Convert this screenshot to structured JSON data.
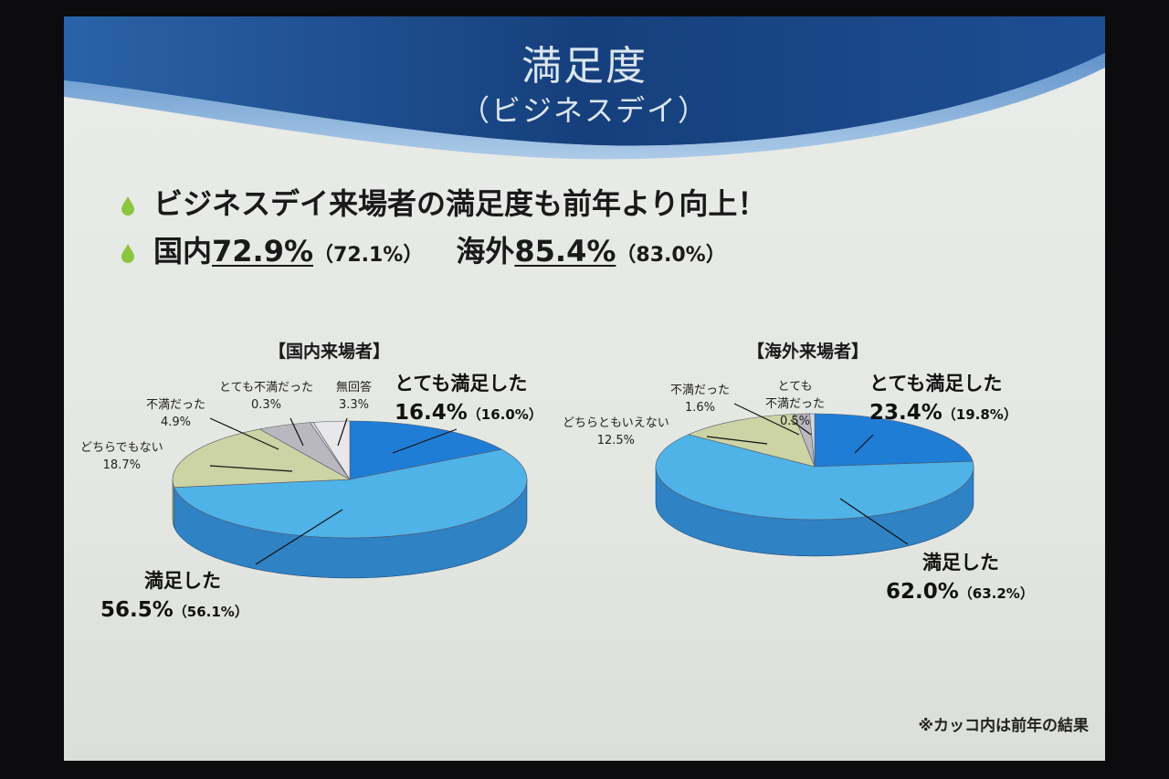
{
  "header": {
    "title": "満足度",
    "subtitle": "（ビジネスデイ）"
  },
  "bullets": {
    "line1": "ビジネスデイ来場者の満足度も前年より向上！",
    "line2_domestic_label": "国内",
    "line2_domestic_value": "72.9%",
    "line2_domestic_prev": "（72.1%）",
    "line2_overseas_label": "海外",
    "line2_overseas_value": "85.4%",
    "line2_overseas_prev": "（83.0%）"
  },
  "colors": {
    "very_satisfied": "#1f7dd6",
    "satisfied": "#4fb3e8",
    "neutral": "#ccd3a4",
    "dissatisfied": "#b8b8be",
    "very_dissatisfied": "#d8d8dc",
    "no_answer": "#e8e8ea",
    "header_blue": "#1f4c8c",
    "bullet_green": "#8cc63f"
  },
  "chart_data": [
    {
      "type": "pie",
      "title": "【国内来場者】",
      "slices": [
        {
          "label": "とても満足した",
          "value": 16.4,
          "value_text": "16.4%",
          "prev_text": "（16.0%）"
        },
        {
          "label": "満足した",
          "value": 56.5,
          "value_text": "56.5%",
          "prev_text": "（56.1%）"
        },
        {
          "label": "どちらでもない",
          "value": 18.7,
          "value_text": "18.7%"
        },
        {
          "label": "不満だった",
          "value": 4.9,
          "value_text": "4.9%"
        },
        {
          "label": "とても不満だった",
          "value": 0.3,
          "value_text": "0.3%"
        },
        {
          "label": "無回答",
          "value": 3.3,
          "value_text": "3.3%"
        }
      ]
    },
    {
      "type": "pie",
      "title": "【海外来場者】",
      "slices": [
        {
          "label": "とても満足した",
          "value": 23.4,
          "value_text": "23.4%",
          "prev_text": "（19.8%）"
        },
        {
          "label": "満足した",
          "value": 62.0,
          "value_text": "62.0%",
          "prev_text": "（63.2%）"
        },
        {
          "label": "どちらともいえない",
          "value": 12.5,
          "value_text": "12.5%"
        },
        {
          "label": "不満だった",
          "value": 1.6,
          "value_text": "1.6%"
        },
        {
          "label": "とても不満だった",
          "value": 0.5,
          "value_text": "0.5%",
          "label_lines": [
            "とても",
            "不満だった"
          ]
        }
      ]
    }
  ],
  "footnote": "※カッコ内は前年の結果"
}
